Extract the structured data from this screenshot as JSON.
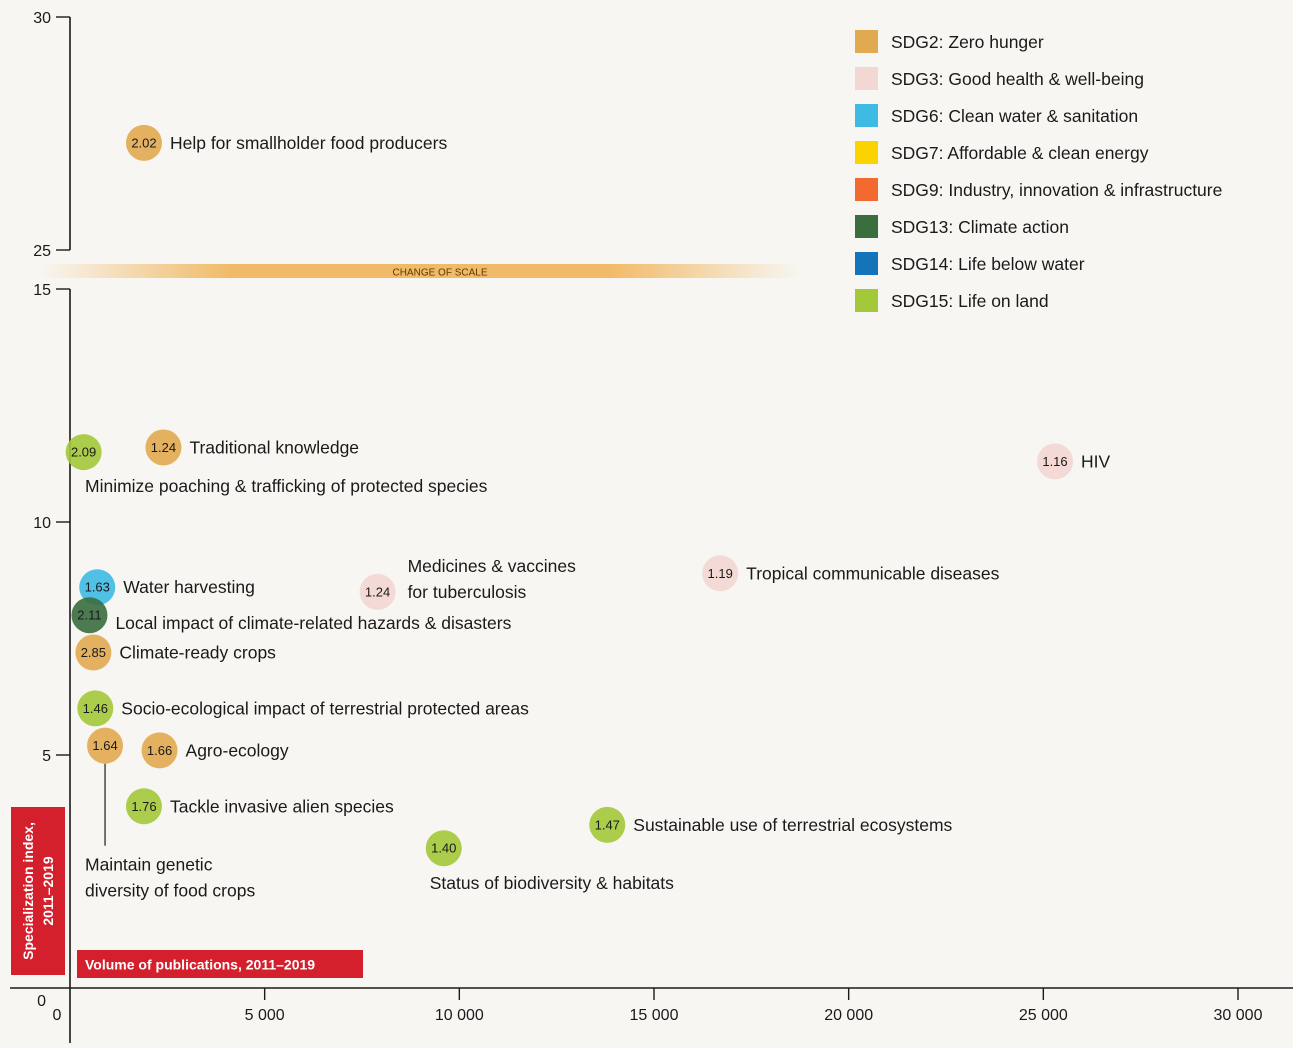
{
  "chart_data": {
    "type": "scatter",
    "xlabel": "Volume of publications, 2011–2019",
    "ylabel_lines": [
      "Specialization index,",
      "2011–2019"
    ],
    "xlim": [
      0,
      30000
    ],
    "ylim_lower": [
      0,
      15
    ],
    "ylim_upper": [
      25,
      30
    ],
    "x_ticks": [
      {
        "v": 0,
        "label": "0"
      },
      {
        "v": 5000,
        "label": "5 000"
      },
      {
        "v": 10000,
        "label": "10 000"
      },
      {
        "v": 15000,
        "label": "15 000"
      },
      {
        "v": 20000,
        "label": "20 000"
      },
      {
        "v": 25000,
        "label": "25 000"
      },
      {
        "v": 30000,
        "label": "30 000"
      }
    ],
    "y_ticks": [
      {
        "v": 0,
        "label": "0"
      },
      {
        "v": 5,
        "label": "5"
      },
      {
        "v": 10,
        "label": "10"
      },
      {
        "v": 15,
        "label": "15"
      },
      {
        "v": 25,
        "label": "25"
      },
      {
        "v": 30,
        "label": "30"
      }
    ],
    "break_label": "CHANGE OF SCALE",
    "legend": [
      {
        "id": "sdg2",
        "label": "SDG2: Zero hunger",
        "color": "#e0aa50"
      },
      {
        "id": "sdg3",
        "label": "SDG3: Good health & well-being",
        "color": "#f3d7d3"
      },
      {
        "id": "sdg6",
        "label": "SDG6: Clean water & sanitation",
        "color": "#3dbbe3"
      },
      {
        "id": "sdg7",
        "label": "SDG7: Affordable & clean energy",
        "color": "#fbd300"
      },
      {
        "id": "sdg9",
        "label": "SDG9: Industry, innovation & infrastructure",
        "color": "#f26a30"
      },
      {
        "id": "sdg13",
        "label": "SDG13: Climate action",
        "color": "#3a6e3f"
      },
      {
        "id": "sdg14",
        "label": "SDG14: Life below water",
        "color": "#1573ba"
      },
      {
        "id": "sdg15",
        "label": "SDG15: Life on land",
        "color": "#a3c93a"
      }
    ],
    "points": [
      {
        "sdg": "sdg2",
        "x": 1900,
        "y": 27.3,
        "value": "2.02",
        "label": [
          "Help for smallholder food producers"
        ],
        "pos": "right"
      },
      {
        "sdg": "sdg15",
        "x": 350,
        "y": 11.5,
        "value": "2.09",
        "label": [
          "Minimize poaching & trafficking of protected species"
        ],
        "pos": "below"
      },
      {
        "sdg": "sdg2",
        "x": 2400,
        "y": 11.6,
        "value": "1.24",
        "label": [
          "Traditional knowledge"
        ],
        "pos": "right"
      },
      {
        "sdg": "sdg3",
        "x": 25300,
        "y": 11.3,
        "value": "1.16",
        "label": [
          "HIV"
        ],
        "pos": "right"
      },
      {
        "sdg": "sdg3",
        "x": 7900,
        "y": 8.5,
        "value": "1.24",
        "label": [
          "Medicines & vaccines",
          "for tuberculosis"
        ],
        "pos": "right-up"
      },
      {
        "sdg": "sdg3",
        "x": 16700,
        "y": 8.9,
        "value": "1.19",
        "label": [
          "Tropical communicable diseases"
        ],
        "pos": "right"
      },
      {
        "sdg": "sdg6",
        "x": 700,
        "y": 8.6,
        "value": "1.63",
        "label": [
          "Water harvesting"
        ],
        "pos": "right"
      },
      {
        "sdg": "sdg13",
        "x": 500,
        "y": 8.0,
        "value": "2.11",
        "label": [
          "Local impact of climate-related hazards & disasters"
        ],
        "pos": "right-down"
      },
      {
        "sdg": "sdg2",
        "x": 600,
        "y": 7.2,
        "value": "2.85",
        "label": [
          "Climate-ready crops"
        ],
        "pos": "right"
      },
      {
        "sdg": "sdg15",
        "x": 650,
        "y": 6.0,
        "value": "1.46",
        "label": [
          "Socio-ecological impact of terrestrial protected areas"
        ],
        "pos": "right"
      },
      {
        "sdg": "sdg2",
        "x": 900,
        "y": 5.2,
        "value": "1.64",
        "label": [
          "Maintain genetic",
          "diversity of food crops"
        ],
        "pos": "leader"
      },
      {
        "sdg": "sdg2",
        "x": 2300,
        "y": 5.1,
        "value": "1.66",
        "label": [
          "Agro-ecology"
        ],
        "pos": "right"
      },
      {
        "sdg": "sdg15",
        "x": 1900,
        "y": 3.9,
        "value": "1.76",
        "label": [
          "Tackle invasive alien species"
        ],
        "pos": "right"
      },
      {
        "sdg": "sdg15",
        "x": 9600,
        "y": 3.0,
        "value": "1.40",
        "label": [
          "Status of biodiversity & habitats"
        ],
        "pos": "below-right"
      },
      {
        "sdg": "sdg15",
        "x": 13800,
        "y": 3.5,
        "value": "1.47",
        "label": [
          "Sustainable use of terrestrial ecosystems"
        ],
        "pos": "right"
      }
    ]
  }
}
